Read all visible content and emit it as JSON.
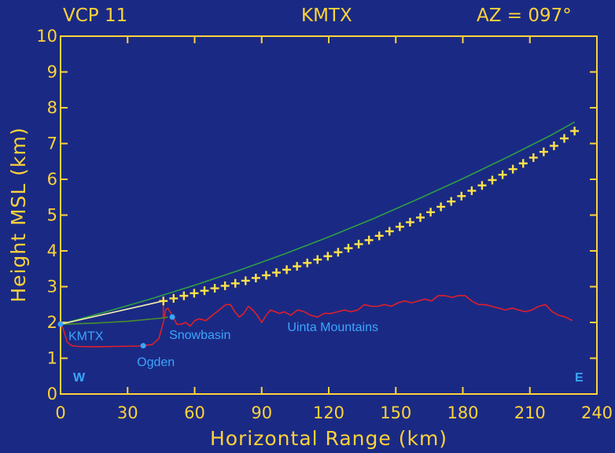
{
  "header": {
    "left": "VCP 11",
    "center": "KMTX",
    "right": "AZ = 097°"
  },
  "colors": {
    "background": "#1a2a84",
    "frame": "#ffd23a",
    "beam_top": "#2f9e44",
    "beam_bottom": "#4a8e2a",
    "beam_center": "#ffe14a",
    "terrain": "#e01e2a",
    "labels": "#3aa6ff",
    "low_beam_tip": "#f3f0b0"
  },
  "chart_data": {
    "type": "line",
    "title": "",
    "xlabel": "Horizontal Range (km)",
    "ylabel": "Height MSL (km)",
    "xlim": [
      0,
      240
    ],
    "ylim": [
      0,
      10
    ],
    "xticks": [
      "0",
      "30",
      "60",
      "90",
      "120",
      "150",
      "180",
      "210",
      "240"
    ],
    "yticks": [
      "0",
      "1",
      "2",
      "3",
      "4",
      "5",
      "6",
      "7",
      "8",
      "9",
      "10"
    ],
    "grid": false,
    "series": [
      {
        "key": "beam_top",
        "x": [
          0,
          20,
          40,
          60,
          80,
          100,
          120,
          140,
          160,
          180,
          200,
          220,
          230
        ],
        "y": [
          1.95,
          2.29,
          2.65,
          3.04,
          3.46,
          3.91,
          4.39,
          4.9,
          5.45,
          6.02,
          6.62,
          7.25,
          7.6
        ]
      },
      {
        "key": "beam_center",
        "x": [
          0,
          46,
          60,
          80,
          100,
          120,
          140,
          160,
          180,
          200,
          220,
          230
        ],
        "y": [
          1.95,
          2.6,
          2.82,
          3.12,
          3.45,
          3.86,
          4.35,
          4.9,
          5.55,
          6.2,
          6.9,
          7.35
        ]
      },
      {
        "key": "beam_bottom",
        "x": [
          0,
          15,
          30,
          45,
          48
        ],
        "y": [
          1.95,
          1.98,
          2.03,
          2.12,
          2.15
        ]
      },
      {
        "key": "terrain",
        "x": [
          0,
          1,
          2,
          3,
          5,
          8,
          15,
          25,
          35,
          41,
          44,
          46,
          47,
          48,
          50,
          52,
          54,
          56,
          58,
          60,
          62,
          65,
          68,
          70,
          72,
          74,
          76,
          78,
          80,
          82,
          84,
          86,
          88,
          90,
          92,
          94,
          96,
          98,
          100,
          103,
          106,
          109,
          112,
          115,
          118,
          121,
          124,
          127,
          130,
          133,
          136,
          139,
          142,
          145,
          148,
          151,
          154,
          157,
          160,
          163,
          166,
          169,
          172,
          175,
          178,
          181,
          184,
          187,
          190,
          193,
          196,
          199,
          202,
          205,
          208,
          211,
          214,
          217,
          220,
          223,
          226,
          229
        ],
        "y": [
          1.95,
          1.85,
          1.65,
          1.45,
          1.35,
          1.33,
          1.32,
          1.33,
          1.34,
          1.38,
          1.55,
          2.0,
          2.35,
          2.4,
          2.2,
          1.95,
          1.95,
          2.0,
          1.9,
          2.05,
          2.1,
          2.05,
          2.2,
          2.3,
          2.4,
          2.5,
          2.5,
          2.3,
          2.15,
          2.25,
          2.45,
          2.35,
          2.2,
          2.0,
          2.2,
          2.35,
          2.3,
          2.25,
          2.3,
          2.2,
          2.35,
          2.3,
          2.2,
          2.15,
          2.25,
          2.25,
          2.3,
          2.35,
          2.3,
          2.35,
          2.5,
          2.45,
          2.45,
          2.5,
          2.45,
          2.55,
          2.6,
          2.55,
          2.6,
          2.65,
          2.6,
          2.75,
          2.75,
          2.7,
          2.75,
          2.75,
          2.6,
          2.5,
          2.5,
          2.45,
          2.4,
          2.35,
          2.4,
          2.35,
          2.3,
          2.35,
          2.45,
          2.5,
          2.3,
          2.2,
          2.15,
          2.05
        ]
      }
    ],
    "annotations": [
      {
        "key": "kmtx",
        "text": "KMTX",
        "x": 0,
        "y": 1.95
      },
      {
        "key": "ogden",
        "text": "Ogden",
        "x": 37,
        "y": 1.35
      },
      {
        "key": "snowbasin",
        "text": "Snowbasin",
        "x": 50,
        "y": 2.15
      },
      {
        "key": "uinta",
        "text": "Uinta Mountains",
        "x": 105,
        "y": 1.8
      }
    ],
    "directions": [
      {
        "text": "W",
        "side": "left"
      },
      {
        "text": "E",
        "side": "right"
      }
    ]
  }
}
